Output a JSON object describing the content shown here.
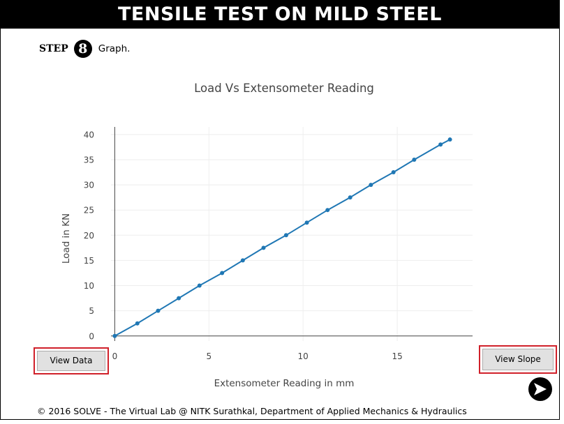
{
  "header": {
    "title": "TENSILE TEST ON MILD STEEL"
  },
  "step": {
    "label": "STEP",
    "number": "8",
    "text": "Graph."
  },
  "chart_data": {
    "type": "line",
    "title": "Load Vs Extensometer Reading",
    "xlabel": "Extensometer Reading in mm",
    "ylabel": "Load in KN",
    "xlim": [
      -0.2,
      19.0
    ],
    "ylim": [
      -1.0,
      41.5
    ],
    "xticks": [
      0,
      5,
      10,
      15
    ],
    "yticks": [
      0,
      5,
      10,
      15,
      20,
      25,
      30,
      35,
      40
    ],
    "grid": true,
    "color": "#1f77b4",
    "series": [
      {
        "x": [
          0,
          1.2,
          2.3,
          3.4,
          4.5,
          5.7,
          6.8,
          7.9,
          9.1,
          10.2,
          11.3,
          12.5,
          13.6,
          14.8,
          15.9,
          17.3,
          17.8
        ],
        "y": [
          0,
          2.5,
          5,
          7.5,
          10,
          12.5,
          15,
          17.5,
          20,
          22.5,
          25,
          27.5,
          30,
          32.5,
          35,
          38,
          39
        ]
      }
    ]
  },
  "buttons": {
    "view_data": "View Data",
    "view_slope": "View Slope"
  },
  "footer": {
    "text": "© 2016 SOLVE - The Virtual Lab @ NITK Surathkal, Department of Applied Mechanics & Hydraulics"
  }
}
